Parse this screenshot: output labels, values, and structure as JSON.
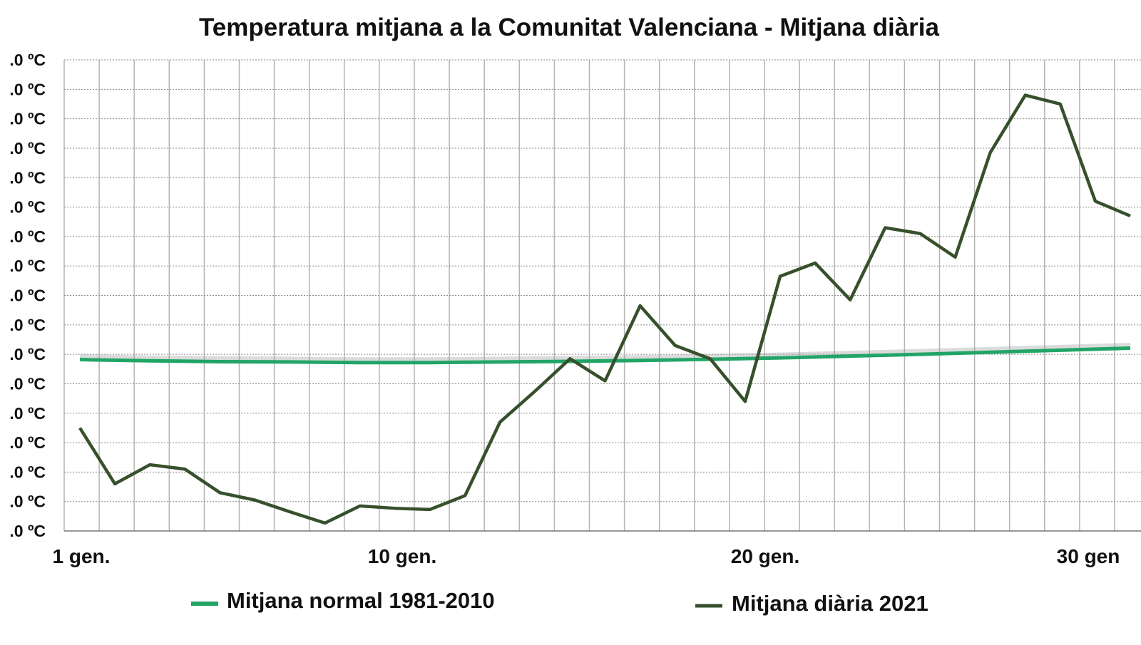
{
  "chart_data": {
    "type": "line",
    "title": "Temperatura mitjana a la Comunitat Valenciana - Mitjana diària",
    "xlabel": "",
    "ylabel": "",
    "y_tick_labels": [
      ".0 ºC",
      ".0 ºC",
      ".0 ºC",
      ".0 ºC",
      ".0 ºC",
      ".0 ºC",
      ".0 ºC",
      ".0 ºC",
      ".0 ºC",
      ".0 ºC",
      ".0 ºC",
      ".0 ºC",
      ".0 ºC",
      ".0 ºC",
      ".0 ºC",
      ".0 ºC",
      ".0 ºC"
    ],
    "y_levels": 17,
    "x_tick_labels": [
      {
        "day": 1,
        "label": "1 gen."
      },
      {
        "day": 10,
        "label": "10 gen."
      },
      {
        "day": 20,
        "label": "20 gen."
      },
      {
        "day": 30,
        "label": "30 gen"
      }
    ],
    "xlim": [
      0.5,
      31
    ],
    "grid": true,
    "legend_position": "bottom",
    "series": [
      {
        "name": "Mitjana normal 1981-2010",
        "color": "#21a567",
        "x": [
          1,
          3,
          5,
          7,
          9,
          11,
          13,
          15,
          17,
          19,
          21,
          23,
          25,
          27,
          29,
          31
        ],
        "values": [
          5.82,
          5.78,
          5.75,
          5.74,
          5.72,
          5.72,
          5.74,
          5.76,
          5.79,
          5.83,
          5.88,
          5.94,
          6.0,
          6.07,
          6.14,
          6.21
        ]
      },
      {
        "name": "Mitjana diària 2021",
        "color": "#36502c",
        "x": [
          1,
          2,
          3,
          4,
          5,
          6,
          7,
          8,
          9,
          10,
          11,
          12,
          13,
          14,
          15,
          16,
          17,
          18,
          19,
          20,
          21,
          22,
          23,
          24,
          25,
          26,
          27,
          28,
          29,
          30,
          31
        ],
        "values": [
          3.5,
          1.6,
          2.25,
          2.1,
          1.3,
          1.05,
          0.65,
          0.27,
          0.85,
          0.77,
          0.73,
          1.2,
          3.7,
          4.75,
          5.85,
          5.1,
          7.65,
          6.3,
          5.85,
          4.4,
          8.65,
          9.1,
          7.85,
          10.3,
          10.1,
          9.3,
          12.85,
          14.8,
          14.5,
          11.2,
          10.7
        ]
      }
    ]
  }
}
